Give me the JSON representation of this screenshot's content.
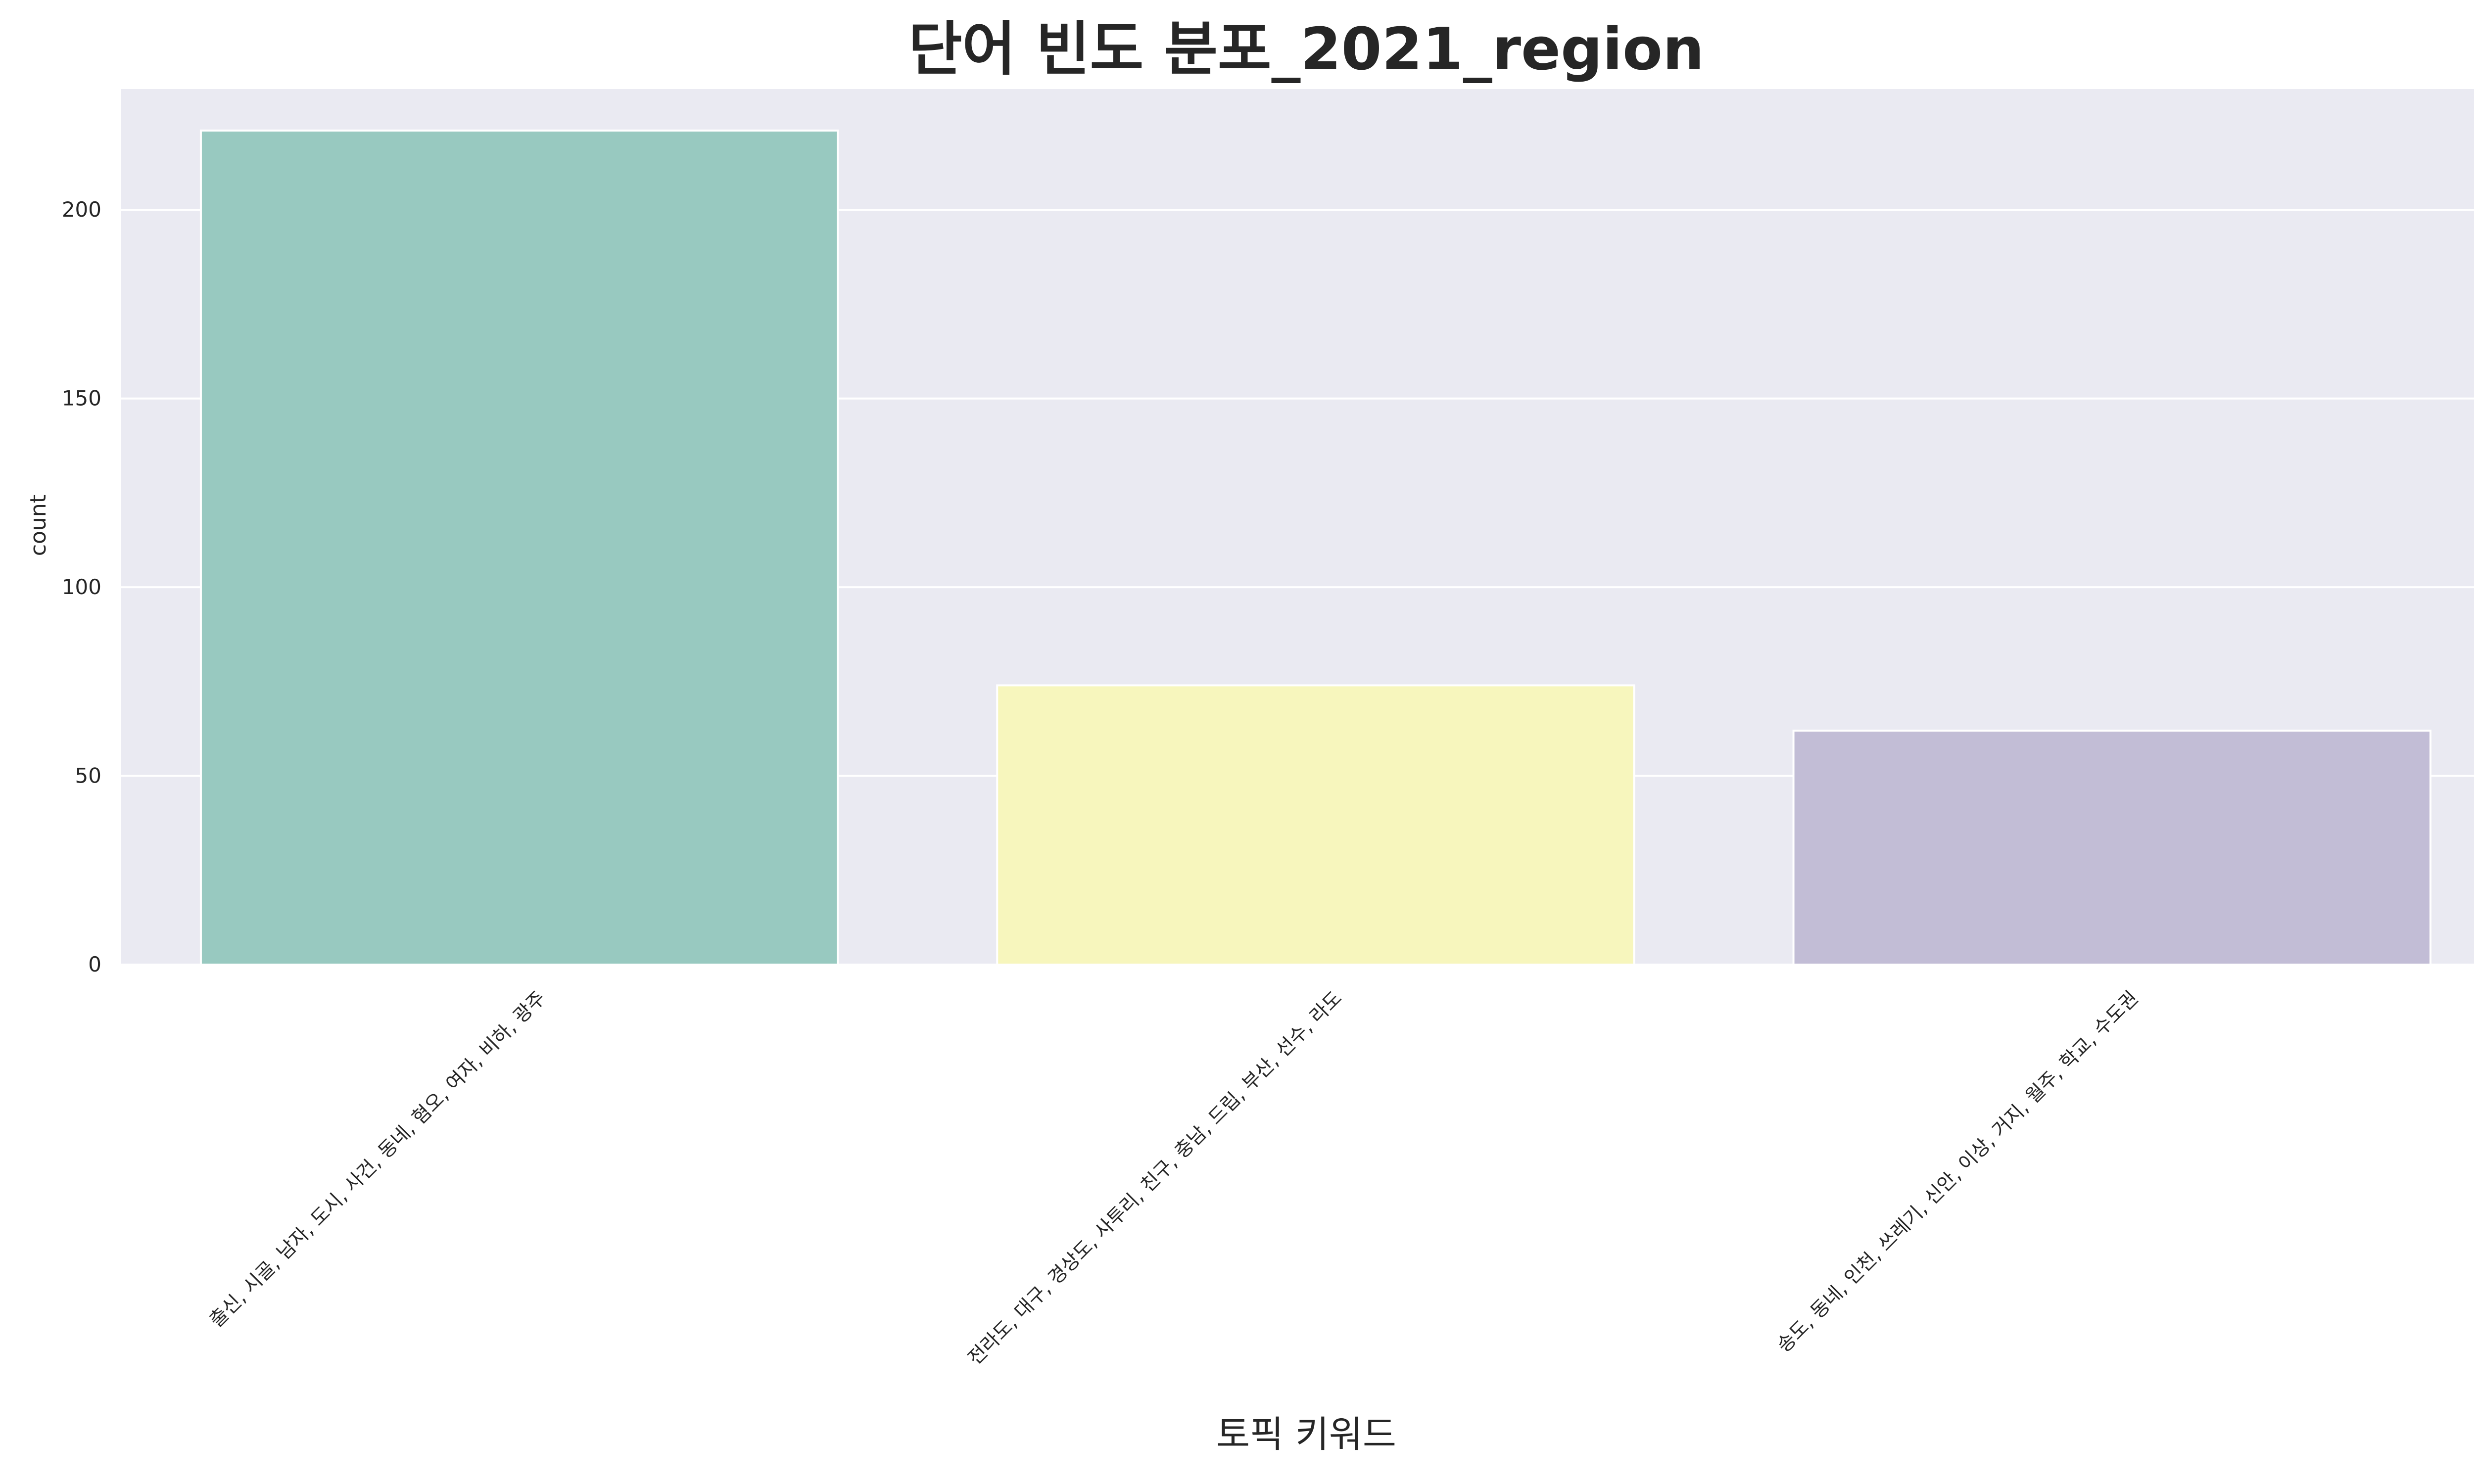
{
  "chart_data": {
    "type": "bar",
    "title": "단어 빈도 분포_2021_region",
    "xlabel": "토픽 키워드",
    "ylabel": "count",
    "categories": [
      "출신, 시골, 남자, 도시, 사건, 동네, 혐오, 여자, 비하, 광주",
      "전라도, 대구, 경상도, 사투리, 친구, 충남, 드립, 부산, 선수, 라도",
      "송도, 동네, 인천, 쓰레기, 신안, 이상, 거지, 월주, 학교, 수도권"
    ],
    "values": [
      221,
      74,
      62
    ],
    "colors": [
      "#98c9c0",
      "#f7f6bd",
      "#c2bdd6"
    ],
    "ylim": [
      0,
      232
    ],
    "yticks": [
      0,
      50,
      100,
      150,
      200
    ],
    "grid": true,
    "background": "#eaeaf2",
    "grid_color": "#ffffff"
  }
}
